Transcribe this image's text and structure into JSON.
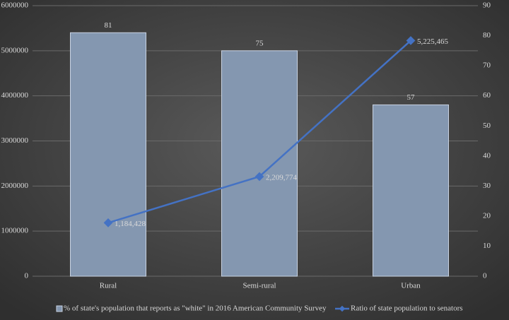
{
  "chart_data": {
    "type": "combo",
    "categories": [
      "Rural",
      "Semi-rural",
      "Urban"
    ],
    "series": [
      {
        "name": "% of state's population that reports as \"white\" in 2016 American Community Survey",
        "type": "bar",
        "axis": "y2",
        "color": "#8497b0",
        "values": [
          81,
          75,
          57
        ]
      },
      {
        "name": "Ratio of state population to senators",
        "type": "line",
        "axis": "y",
        "color": "#4472c4",
        "values": [
          1184428,
          2209774,
          5225465
        ],
        "value_labels": [
          "1,184,428",
          "2,209,774",
          "5,225,465"
        ]
      }
    ],
    "ylim": [
      0,
      6000000
    ],
    "yticks": [
      0,
      1000000,
      2000000,
      3000000,
      4000000,
      5000000,
      6000000
    ],
    "y2lim": [
      0,
      90
    ],
    "y2ticks": [
      0,
      10,
      20,
      30,
      40,
      50,
      60,
      70,
      80,
      90
    ],
    "grid": true,
    "legend": "bottom"
  }
}
